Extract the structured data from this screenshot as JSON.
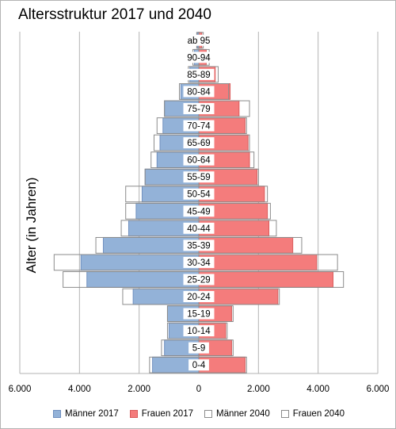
{
  "chart_data": {
    "type": "bar",
    "orientation": "horizontal",
    "title": "Altersstruktur 2017 und 2040",
    "ylabel": "Alter (in Jahren)",
    "xlabel": "",
    "xlim": [
      -6000,
      6000
    ],
    "x_tick_values": [
      -6000,
      -4000,
      -2000,
      0,
      2000,
      4000,
      6000
    ],
    "x_tick_labels": [
      "6.000",
      "4.000",
      "2.000",
      "0",
      "2.000",
      "4.000",
      "6.000"
    ],
    "grid": "vertical",
    "legend_position": "bottom",
    "categories": [
      "0-4",
      "5-9",
      "10-14",
      "15-19",
      "20-24",
      "25-29",
      "30-34",
      "35-39",
      "40-44",
      "45-49",
      "50-54",
      "55-59",
      "60-64",
      "65-69",
      "70-74",
      "75-79",
      "80-84",
      "85-89",
      "90-94",
      "ab 95"
    ],
    "series": [
      {
        "name": "Männer 2017",
        "side": "left",
        "style": "filled",
        "color": "#93b2d8",
        "stroke": "#6f8fbf",
        "values": [
          1550,
          1150,
          1000,
          1050,
          2200,
          3750,
          3950,
          3200,
          2350,
          2100,
          1900,
          1800,
          1400,
          1300,
          1200,
          1150,
          600,
          300,
          150,
          50
        ]
      },
      {
        "name": "Frauen 2017",
        "side": "right",
        "style": "filled",
        "color": "#f47c7c",
        "stroke": "#d95c5c",
        "values": [
          1550,
          1100,
          900,
          1100,
          2650,
          4500,
          3950,
          3150,
          2350,
          2300,
          2200,
          1950,
          1700,
          1650,
          1550,
          1350,
          1050,
          550,
          250,
          100
        ]
      },
      {
        "name": "Männer 2040",
        "side": "left",
        "style": "outline",
        "color": "#ffffff",
        "stroke": "#8c8c8c",
        "values": [
          1650,
          1250,
          1050,
          1050,
          2550,
          4550,
          4850,
          3450,
          2600,
          2450,
          2450,
          1800,
          1600,
          1500,
          1400,
          1150,
          650,
          350,
          200,
          70
        ]
      },
      {
        "name": "Frauen 2040",
        "side": "right",
        "style": "outline",
        "color": "#ffffff",
        "stroke": "#8c8c8c",
        "values": [
          1600,
          1150,
          950,
          1150,
          2700,
          4850,
          4650,
          3450,
          2600,
          2400,
          2300,
          2000,
          1850,
          1700,
          1600,
          1700,
          1000,
          650,
          350,
          150
        ]
      }
    ]
  },
  "colors": {
    "grid": "#b3b3b3",
    "axis": "#b3b3b3",
    "frame": "#b3b3b3"
  }
}
